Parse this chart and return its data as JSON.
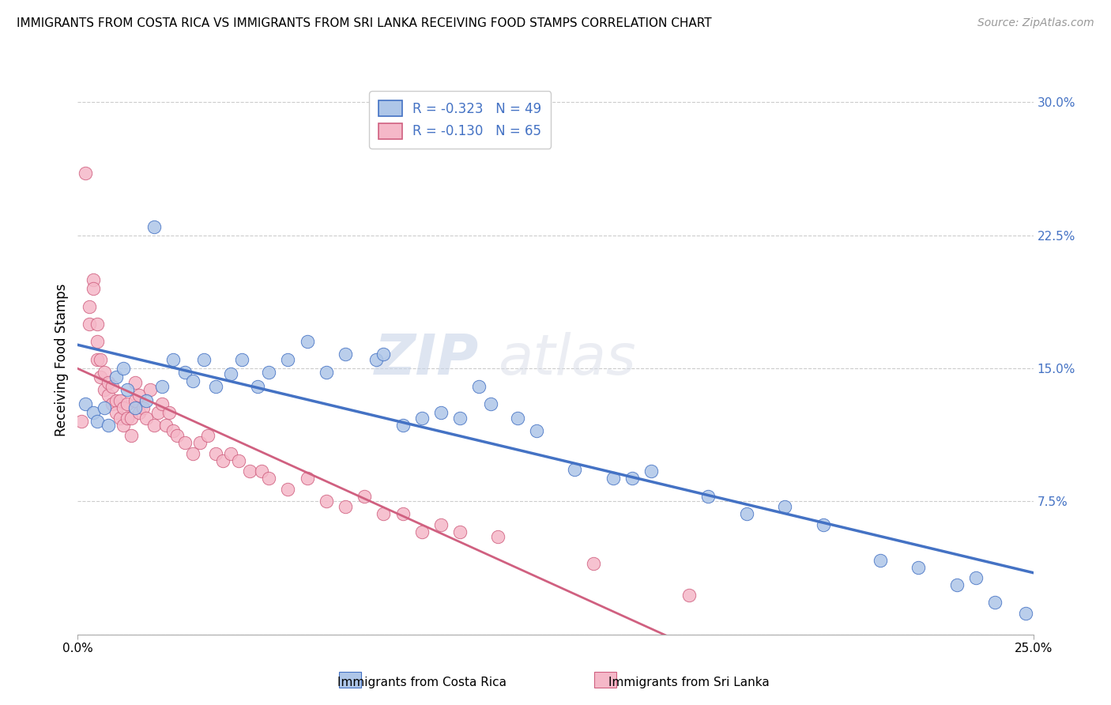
{
  "title": "IMMIGRANTS FROM COSTA RICA VS IMMIGRANTS FROM SRI LANKA RECEIVING FOOD STAMPS CORRELATION CHART",
  "source": "Source: ZipAtlas.com",
  "ylabel": "Receiving Food Stamps",
  "series1_label": "Immigrants from Costa Rica",
  "series2_label": "Immigrants from Sri Lanka",
  "series1_R": "-0.323",
  "series1_N": "49",
  "series2_R": "-0.130",
  "series2_N": "65",
  "series1_color": "#aec6e8",
  "series2_color": "#f5b8c8",
  "series1_edge_color": "#4472c4",
  "series2_edge_color": "#d06080",
  "series1_line_color": "#4472c4",
  "series2_line_color": "#d06080",
  "legend_text_color": "#4472c4",
  "right_axis_color": "#4472c4",
  "xmin": 0.0,
  "xmax": 0.25,
  "ymin": 0.0,
  "ymax": 0.31,
  "y_ticks_right": [
    0.0,
    0.075,
    0.15,
    0.225,
    0.3
  ],
  "y_tick_labels_right": [
    "",
    "7.5%",
    "15.0%",
    "22.5%",
    "30.0%"
  ],
  "watermark_zip": "ZIP",
  "watermark_atlas": "atlas",
  "series1_x": [
    0.002,
    0.004,
    0.005,
    0.007,
    0.008,
    0.01,
    0.012,
    0.013,
    0.015,
    0.018,
    0.02,
    0.022,
    0.025,
    0.028,
    0.03,
    0.033,
    0.036,
    0.04,
    0.043,
    0.047,
    0.05,
    0.055,
    0.06,
    0.065,
    0.07,
    0.078,
    0.08,
    0.085,
    0.09,
    0.095,
    0.1,
    0.105,
    0.108,
    0.115,
    0.12,
    0.13,
    0.14,
    0.145,
    0.15,
    0.165,
    0.175,
    0.185,
    0.195,
    0.21,
    0.22,
    0.23,
    0.235,
    0.24,
    0.248
  ],
  "series1_y": [
    0.13,
    0.125,
    0.12,
    0.128,
    0.118,
    0.145,
    0.15,
    0.138,
    0.128,
    0.132,
    0.23,
    0.14,
    0.155,
    0.148,
    0.143,
    0.155,
    0.14,
    0.147,
    0.155,
    0.14,
    0.148,
    0.155,
    0.165,
    0.148,
    0.158,
    0.155,
    0.158,
    0.118,
    0.122,
    0.125,
    0.122,
    0.14,
    0.13,
    0.122,
    0.115,
    0.093,
    0.088,
    0.088,
    0.092,
    0.078,
    0.068,
    0.072,
    0.062,
    0.042,
    0.038,
    0.028,
    0.032,
    0.018,
    0.012
  ],
  "series2_x": [
    0.001,
    0.002,
    0.003,
    0.003,
    0.004,
    0.004,
    0.005,
    0.005,
    0.005,
    0.006,
    0.006,
    0.007,
    0.007,
    0.008,
    0.008,
    0.009,
    0.009,
    0.01,
    0.01,
    0.011,
    0.011,
    0.012,
    0.012,
    0.013,
    0.013,
    0.014,
    0.014,
    0.015,
    0.015,
    0.016,
    0.016,
    0.017,
    0.018,
    0.019,
    0.02,
    0.021,
    0.022,
    0.023,
    0.024,
    0.025,
    0.026,
    0.028,
    0.03,
    0.032,
    0.034,
    0.036,
    0.038,
    0.04,
    0.042,
    0.045,
    0.048,
    0.05,
    0.055,
    0.06,
    0.065,
    0.07,
    0.075,
    0.08,
    0.085,
    0.09,
    0.095,
    0.1,
    0.11,
    0.135,
    0.16
  ],
  "series2_y": [
    0.12,
    0.26,
    0.185,
    0.175,
    0.2,
    0.195,
    0.175,
    0.165,
    0.155,
    0.155,
    0.145,
    0.148,
    0.138,
    0.142,
    0.135,
    0.14,
    0.13,
    0.132,
    0.125,
    0.132,
    0.122,
    0.128,
    0.118,
    0.13,
    0.122,
    0.122,
    0.112,
    0.142,
    0.132,
    0.135,
    0.125,
    0.128,
    0.122,
    0.138,
    0.118,
    0.125,
    0.13,
    0.118,
    0.125,
    0.115,
    0.112,
    0.108,
    0.102,
    0.108,
    0.112,
    0.102,
    0.098,
    0.102,
    0.098,
    0.092,
    0.092,
    0.088,
    0.082,
    0.088,
    0.075,
    0.072,
    0.078,
    0.068,
    0.068,
    0.058,
    0.062,
    0.058,
    0.055,
    0.04,
    0.022
  ]
}
